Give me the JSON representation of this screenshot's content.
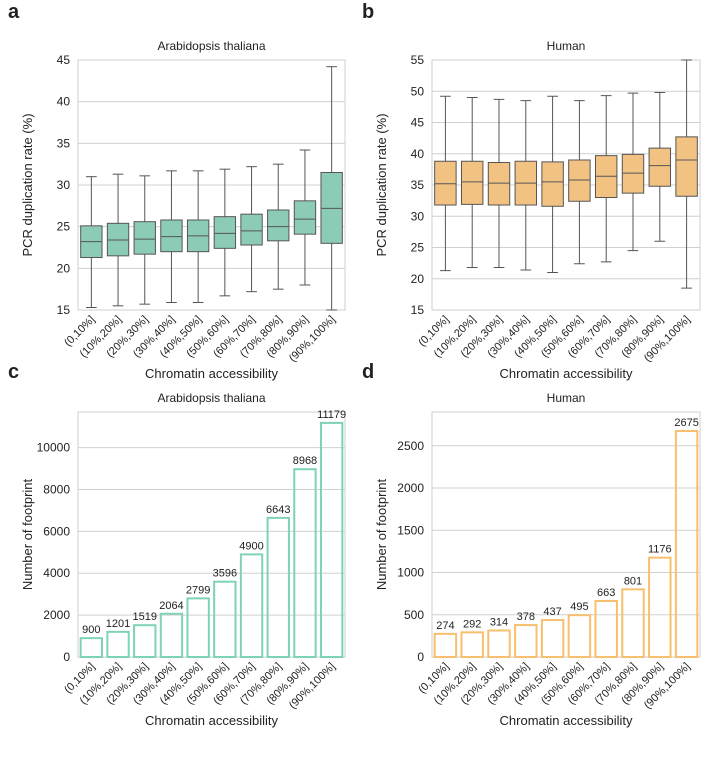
{
  "chart_data": [
    {
      "type": "box",
      "panel": "a",
      "title": "Arabidopsis thaliana",
      "ylabel": "PCR duplication rate (%)",
      "xlabel": "Chromatin accessibility",
      "categories": [
        "(0,10%]",
        "(10%,20%]",
        "(20%,30%]",
        "(30%,40%]",
        "(40%,50%]",
        "(50%,60%]",
        "(60%,70%]",
        "(70%,80%]",
        "(80%,90%]",
        "(90%,100%]"
      ],
      "boxes": [
        {
          "whislo": 15.3,
          "q1": 21.3,
          "med": 23.2,
          "q3": 25.1,
          "whishi": 31.0
        },
        {
          "whislo": 15.5,
          "q1": 21.5,
          "med": 23.4,
          "q3": 25.4,
          "whishi": 31.3
        },
        {
          "whislo": 15.7,
          "q1": 21.7,
          "med": 23.5,
          "q3": 25.6,
          "whishi": 31.1
        },
        {
          "whislo": 15.9,
          "q1": 22.0,
          "med": 23.8,
          "q3": 25.8,
          "whishi": 31.7
        },
        {
          "whislo": 15.9,
          "q1": 22.0,
          "med": 23.9,
          "q3": 25.8,
          "whishi": 31.7
        },
        {
          "whislo": 16.7,
          "q1": 22.4,
          "med": 24.2,
          "q3": 26.2,
          "whishi": 31.9
        },
        {
          "whislo": 17.2,
          "q1": 22.8,
          "med": 24.5,
          "q3": 26.5,
          "whishi": 32.2
        },
        {
          "whislo": 17.5,
          "q1": 23.3,
          "med": 25.0,
          "q3": 27.0,
          "whishi": 32.5
        },
        {
          "whislo": 18.0,
          "q1": 24.1,
          "med": 25.9,
          "q3": 28.1,
          "whishi": 34.2
        },
        {
          "whislo": 15.0,
          "q1": 23.0,
          "med": 27.2,
          "q3": 31.5,
          "whishi": 44.2
        }
      ],
      "color": "#8ccbb5",
      "ylim": [
        15,
        45
      ],
      "yticks": [
        15,
        20,
        25,
        30,
        35,
        40,
        45
      ],
      "grid": true
    },
    {
      "type": "box",
      "panel": "b",
      "title": "Human",
      "ylabel": "PCR duplication rate (%)",
      "xlabel": "Chromatin accessibility",
      "categories": [
        "(0,10%]",
        "(10%,20%]",
        "(20%,30%]",
        "(30%,40%]",
        "(40%,50%]",
        "(50%,60%]",
        "(60%,70%]",
        "(70%,80%]",
        "(80%,90%]",
        "(90%,100%]"
      ],
      "boxes": [
        {
          "whislo": 21.3,
          "q1": 31.8,
          "med": 35.2,
          "q3": 38.8,
          "whishi": 49.2
        },
        {
          "whislo": 21.8,
          "q1": 31.9,
          "med": 35.5,
          "q3": 38.8,
          "whishi": 49.0
        },
        {
          "whislo": 21.8,
          "q1": 31.8,
          "med": 35.3,
          "q3": 38.6,
          "whishi": 48.7
        },
        {
          "whislo": 21.4,
          "q1": 31.8,
          "med": 35.3,
          "q3": 38.8,
          "whishi": 48.5
        },
        {
          "whislo": 21.0,
          "q1": 31.6,
          "med": 35.5,
          "q3": 38.7,
          "whishi": 49.2
        },
        {
          "whislo": 22.4,
          "q1": 32.4,
          "med": 35.8,
          "q3": 39.0,
          "whishi": 48.5
        },
        {
          "whislo": 22.7,
          "q1": 33.0,
          "med": 36.4,
          "q3": 39.7,
          "whishi": 49.3
        },
        {
          "whislo": 24.5,
          "q1": 33.7,
          "med": 36.9,
          "q3": 39.9,
          "whishi": 49.7
        },
        {
          "whislo": 26.0,
          "q1": 34.8,
          "med": 38.1,
          "q3": 40.9,
          "whishi": 49.8
        },
        {
          "whislo": 18.5,
          "q1": 33.2,
          "med": 39.0,
          "q3": 42.7,
          "whishi": 55.0
        }
      ],
      "color": "#f2c283",
      "ylim": [
        15,
        55
      ],
      "yticks": [
        15,
        20,
        25,
        30,
        35,
        40,
        45,
        50,
        55
      ],
      "grid": true
    },
    {
      "type": "bar",
      "panel": "c",
      "title": "Arabidopsis thaliana",
      "ylabel": "Number of footprint",
      "xlabel": "Chromatin accessibility",
      "categories": [
        "(0,10%]",
        "(10%,20%]",
        "(20%,30%]",
        "(30%,40%]",
        "(40%,50%]",
        "(50%,60%]",
        "(60%,70%]",
        "(70%,80%]",
        "(80%,90%]",
        "(90%,100%]"
      ],
      "values": [
        900,
        1201,
        1519,
        2064,
        2799,
        3596,
        4900,
        6643,
        8968,
        11179
      ],
      "color": "#7fd3b5",
      "ylim": [
        0,
        11700
      ],
      "yticks": [
        0,
        2000,
        4000,
        6000,
        8000,
        10000
      ],
      "grid": true
    },
    {
      "type": "bar",
      "panel": "d",
      "title": "Human",
      "ylabel": "Number of footprint",
      "xlabel": "Chromatin accessibility",
      "categories": [
        "(0,10%]",
        "(10%,20%]",
        "(20%,30%]",
        "(30%,40%]",
        "(40%,50%]",
        "(50%,60%]",
        "(60%,70%]",
        "(70%,80%]",
        "(80%,90%]",
        "(90%,100%]"
      ],
      "values": [
        274,
        292,
        314,
        378,
        437,
        495,
        663,
        801,
        1176,
        2675
      ],
      "color": "#f7bf6e",
      "ylim": [
        0,
        2900
      ],
      "yticks": [
        0,
        500,
        1000,
        1500,
        2000,
        2500
      ],
      "grid": true
    }
  ]
}
